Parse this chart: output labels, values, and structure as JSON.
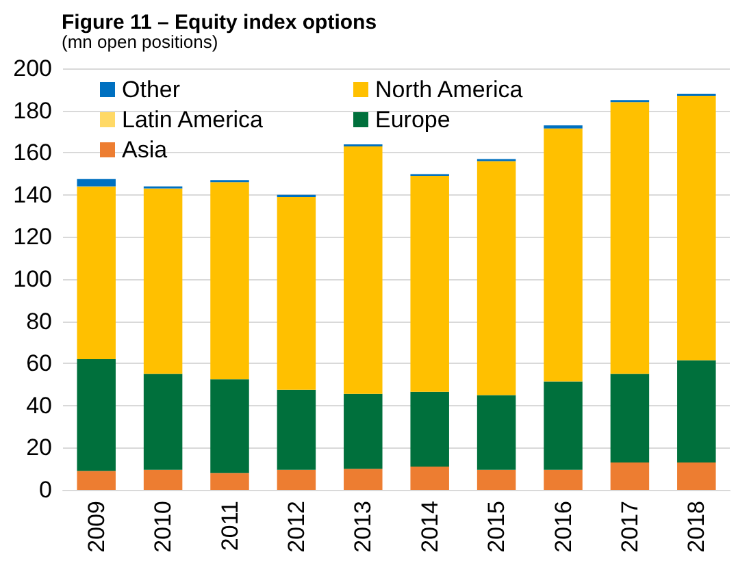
{
  "chart_data": {
    "type": "bar",
    "title": "Figure 11 – Equity index options",
    "subtitle": "(mn open positions)",
    "categories": [
      "2009",
      "2010",
      "2011",
      "2012",
      "2013",
      "2014",
      "2015",
      "2016",
      "2017",
      "2018"
    ],
    "stacked": true,
    "series": [
      {
        "name": "Asia",
        "color": "#ed7d31",
        "values": [
          9,
          9.5,
          8,
          9.5,
          10,
          11,
          9.5,
          9.5,
          13,
          13
        ]
      },
      {
        "name": "Europe",
        "color": "#00703c",
        "values": [
          53,
          45.5,
          44.5,
          38,
          35.5,
          35.5,
          35.5,
          42,
          42,
          48.5
        ]
      },
      {
        "name": "Latin America",
        "color": "#ffd966",
        "values": [
          0,
          0,
          0,
          0,
          0,
          0,
          0,
          0,
          0,
          0
        ]
      },
      {
        "name": "North America",
        "color": "#ffc000",
        "values": [
          82,
          88,
          93.5,
          91.5,
          117.5,
          102.5,
          111,
          120,
          129,
          125.5
        ]
      },
      {
        "name": "Other",
        "color": "#0070c0",
        "values": [
          3.5,
          1,
          1,
          1,
          1,
          0.8,
          1,
          1.5,
          1,
          1
        ]
      }
    ],
    "ylim": [
      0,
      200
    ],
    "yticks": [
      0,
      20,
      40,
      60,
      80,
      100,
      120,
      140,
      160,
      180,
      200
    ],
    "grid": "y",
    "legend": "top left"
  }
}
